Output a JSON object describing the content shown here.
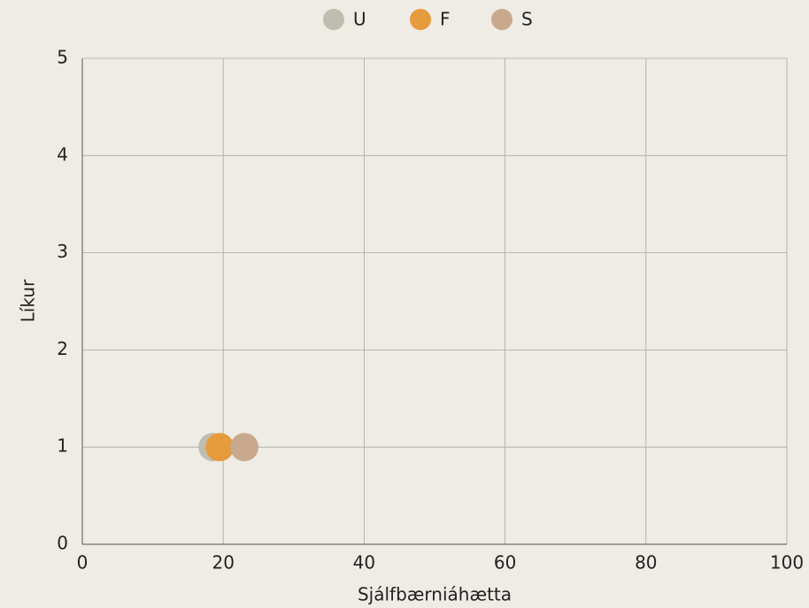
{
  "chart_data": {
    "type": "scatter",
    "x_label": "Sjálfbærniáhætta",
    "y_label": "Líkur",
    "series": [
      {
        "name": "U",
        "color": "#bebdaf",
        "x": [
          18.5
        ],
        "values": [
          1
        ]
      },
      {
        "name": "F",
        "color": "#e69b3c",
        "x": [
          19.5
        ],
        "values": [
          1
        ]
      },
      {
        "name": "S",
        "color": "#c8a98f",
        "x": [
          23
        ],
        "values": [
          1
        ]
      }
    ],
    "xlim": [
      0,
      100
    ],
    "xticks": [
      0,
      20,
      40,
      60,
      80,
      100
    ],
    "ylim": [
      0,
      5
    ],
    "yticks": [
      0,
      1,
      2,
      3,
      4,
      5
    ],
    "grid": true,
    "legend": "top"
  }
}
